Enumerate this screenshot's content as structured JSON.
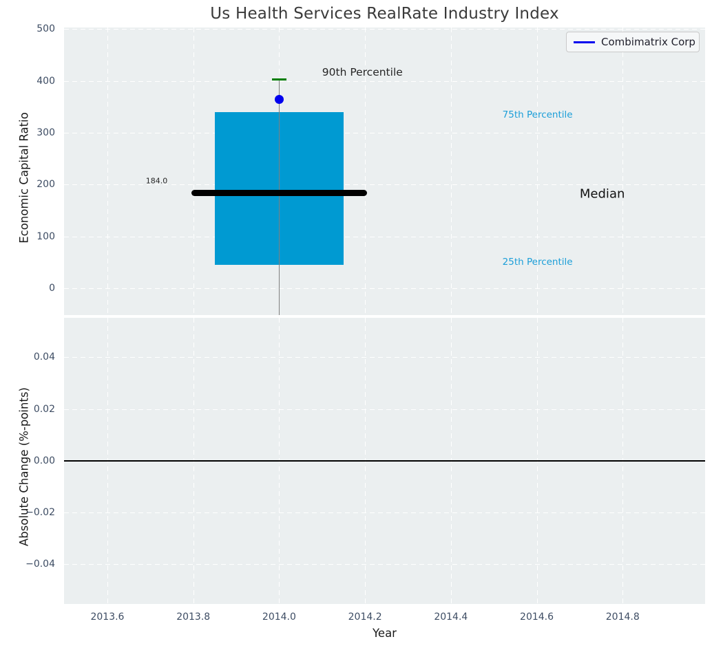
{
  "title": "Us Health Services RealRate Industry Index",
  "legend": {
    "label": "Combimatrix Corp",
    "line_color": "#0000ee"
  },
  "colors": {
    "axes_background": "#ebeff0",
    "grid": "#ffffff",
    "box_fill": "#009ad2",
    "median_line": "#000000",
    "whisker_line": "#7f7f7f",
    "percentile_cap": "#007d00",
    "company_marker": "#0000ee",
    "tick_label": "#3d4c63",
    "axis_label": "#1a1a1a",
    "percentile_text": "#1b9ed8",
    "zero_line": "#000000"
  },
  "chart_data": {
    "type": "boxplot",
    "title": "Us Health Services RealRate Industry Index",
    "grid": "white dashed on light gray panels",
    "legend_position": "upper right of top panel",
    "x_axis": {
      "label": "Year",
      "xlim": [
        2013.499,
        2014.992
      ],
      "ticks": [
        2013.6,
        2013.8,
        2014.0,
        2014.2,
        2014.4,
        2014.6,
        2014.8
      ],
      "tick_labels": [
        "2013.6",
        "2013.8",
        "2014.0",
        "2014.2",
        "2014.4",
        "2014.6",
        "2014.8"
      ]
    },
    "top_panel": {
      "ylabel": "Economic Capital Ratio",
      "ylim": [
        -52.1,
        503.2
      ],
      "yticks": [
        0,
        100,
        200,
        300,
        400,
        500
      ],
      "ytick_labels": [
        "0",
        "100",
        "200",
        "300",
        "400",
        "500"
      ],
      "box": {
        "x_center": 2014.0,
        "box_x_range": [
          2013.85,
          2014.15
        ],
        "median_x_range": [
          2013.795,
          2014.205
        ],
        "cap_x_range": [
          2013.983,
          2014.017
        ],
        "q1_25th_percentile": 45,
        "median": 184.0,
        "q3_75th_percentile": 340,
        "p90_90th_percentile": 403,
        "whisker_low_clipped_below_axis": true
      },
      "company_point": {
        "name": "Combimatrix Corp",
        "x": 2014.0,
        "y": 364
      },
      "annotations": [
        {
          "text": "90th Percentile",
          "x": 2014.1,
          "y": 417,
          "align": "left",
          "size": 15.5,
          "color": "#262626"
        },
        {
          "text": "184.0",
          "x": 2013.74,
          "y": 207,
          "align": "right",
          "size": 11,
          "color": "#262626"
        },
        {
          "text": "75th Percentile",
          "x": 2014.52,
          "y": 334,
          "align": "left",
          "size": 13.5,
          "color": "#1b9ed8"
        },
        {
          "text": "Median",
          "x": 2014.7,
          "y": 182,
          "align": "left",
          "size": 18,
          "color": "#111111"
        },
        {
          "text": "25th Percentile",
          "x": 2014.52,
          "y": 50,
          "align": "left",
          "size": 13.5,
          "color": "#1b9ed8"
        }
      ]
    },
    "bottom_panel": {
      "ylabel": "Absolute Change (%-points)",
      "ylim": [
        -0.0553,
        0.0552
      ],
      "yticks": [
        0.04,
        0.02,
        0.0,
        -0.02,
        -0.04
      ],
      "ytick_labels": [
        "0.04",
        "0.02",
        "0.00",
        "−0.02",
        "−0.04"
      ],
      "zero_line_y": 0.0,
      "series_values_visible": []
    }
  }
}
